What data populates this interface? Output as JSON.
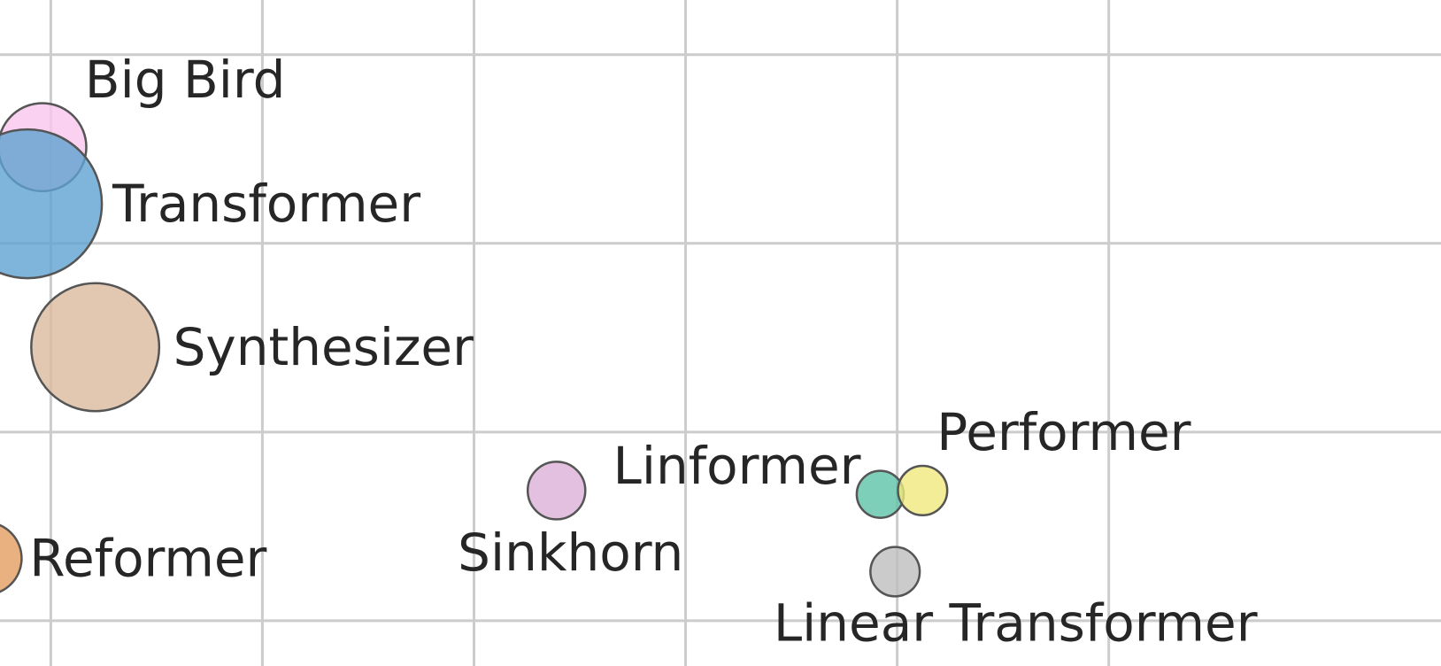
{
  "chart_data": {
    "type": "scatter",
    "title": "",
    "xlabel": "",
    "ylabel": "",
    "xlim": [
      0.76,
      7.57
    ],
    "ylim": [
      0.76,
      4.29
    ],
    "grid": true,
    "x_gridlines": [
      1,
      2,
      3,
      4,
      5,
      6
    ],
    "y_gridlines": [
      1,
      2,
      3,
      4
    ],
    "points": [
      {
        "name": "Big Bird",
        "x": 0.96,
        "y": 3.51,
        "size": 0.35,
        "color": "#f9c5ec"
      },
      {
        "name": "Transformer",
        "x": 0.89,
        "y": 3.21,
        "size": 1.0,
        "color": "#5fa2d1"
      },
      {
        "name": "Synthesizer",
        "x": 1.21,
        "y": 2.45,
        "size": 0.74,
        "color": "#dbb99d"
      },
      {
        "name": "Reformer",
        "x": 0.69,
        "y": 1.33,
        "size": 0.24,
        "color": "#e59d60"
      },
      {
        "name": "Sinkhorn",
        "x": 3.39,
        "y": 1.69,
        "size": 0.15,
        "color": "#dcb0d7"
      },
      {
        "name": "Linformer",
        "x": 4.92,
        "y": 1.67,
        "size": 0.1,
        "color": "#5dc3a8"
      },
      {
        "name": "Performer",
        "x": 5.12,
        "y": 1.69,
        "size": 0.11,
        "color": "#efe87c"
      },
      {
        "name": "Linear Transformer",
        "x": 4.99,
        "y": 1.26,
        "size": 0.11,
        "color": "#bebebe"
      }
    ]
  }
}
